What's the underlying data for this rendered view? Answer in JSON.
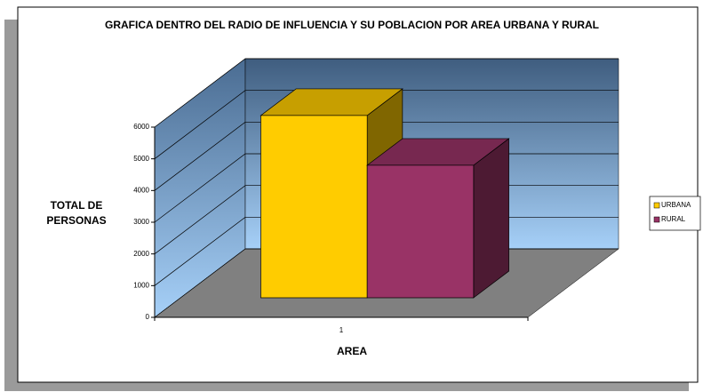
{
  "chart_data": {
    "type": "bar3d",
    "title": "GRAFICA DENTRO DEL RADIO DE INFLUENCIA Y SU POBLACION POR AREA URBANA Y RURAL",
    "xlabel": "AREA",
    "ylabel": "TOTAL DE PERSONAS",
    "categories": [
      "1"
    ],
    "series": [
      {
        "name": "URBANA",
        "color": "#ffcc00",
        "values": [
          5750
        ]
      },
      {
        "name": "RURAL",
        "color": "#993366",
        "values": [
          4180
        ]
      }
    ],
    "ylim": [
      0,
      6000
    ],
    "yticks": [
      0,
      1000,
      2000,
      3000,
      4000,
      5000,
      6000
    ],
    "grid": true,
    "legend": "right"
  }
}
